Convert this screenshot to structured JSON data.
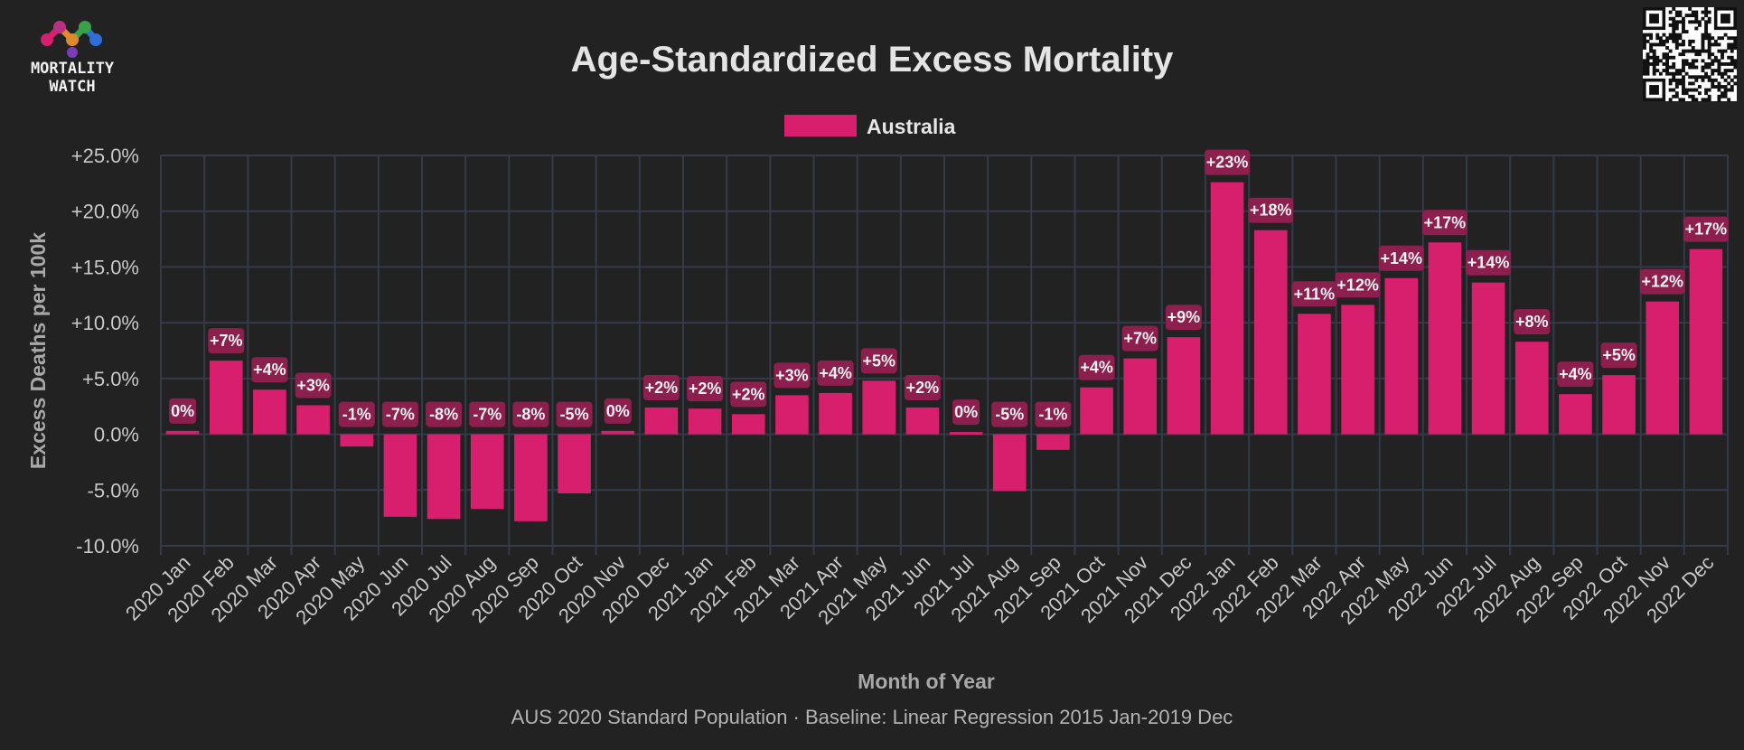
{
  "logo": {
    "line1": "MORTALITY",
    "line2": "WATCH"
  },
  "colors": {
    "background": "#222222",
    "bar": "#d81f6e",
    "label_bg": "#8c1f4e",
    "grid": "#343a4a"
  },
  "chart_data": {
    "type": "bar",
    "title": "Age-Standardized Excess Mortality",
    "subtitle": "AUS 2020 Standard Population · Baseline: Linear Regression 2015 Jan-2019 Dec",
    "xlabel": "Month of Year",
    "ylabel": "Excess Deaths per 100k",
    "ylim": [
      -10,
      25
    ],
    "yticks": [
      "+25.0%",
      "+20.0%",
      "+15.0%",
      "+10.0%",
      "+5.0%",
      "0.0%",
      "-5.0%",
      "-10.0%"
    ],
    "ytick_values": [
      25,
      20,
      15,
      10,
      5,
      0,
      -5,
      -10
    ],
    "grid": true,
    "legend_position": "top-center",
    "categories": [
      "2020 Jan",
      "2020 Feb",
      "2020 Mar",
      "2020 Apr",
      "2020 May",
      "2020 Jun",
      "2020 Jul",
      "2020 Aug",
      "2020 Sep",
      "2020 Oct",
      "2020 Nov",
      "2020 Dec",
      "2021 Jan",
      "2021 Feb",
      "2021 Mar",
      "2021 Apr",
      "2021 May",
      "2021 Jun",
      "2021 Jul",
      "2021 Aug",
      "2021 Sep",
      "2021 Oct",
      "2021 Nov",
      "2021 Dec",
      "2022 Jan",
      "2022 Feb",
      "2022 Mar",
      "2022 Apr",
      "2022 May",
      "2022 Jun",
      "2022 Jul",
      "2022 Aug",
      "2022 Sep",
      "2022 Oct",
      "2022 Nov",
      "2022 Dec"
    ],
    "series": [
      {
        "name": "Australia",
        "values": [
          0.3,
          6.6,
          4.0,
          2.6,
          -1.1,
          -7.4,
          -7.6,
          -6.7,
          -7.8,
          -5.3,
          0.3,
          2.4,
          2.3,
          1.8,
          3.5,
          3.7,
          4.8,
          2.4,
          0.2,
          -5.1,
          -1.4,
          4.2,
          6.8,
          8.7,
          22.6,
          18.3,
          10.8,
          11.6,
          14.0,
          17.2,
          13.6,
          8.3,
          3.6,
          5.3,
          11.9,
          16.6
        ],
        "labels": [
          "0%",
          "+7%",
          "+4%",
          "+3%",
          "-1%",
          "-7%",
          "-8%",
          "-7%",
          "-8%",
          "-5%",
          "0%",
          "+2%",
          "+2%",
          "+2%",
          "+3%",
          "+4%",
          "+5%",
          "+2%",
          "0%",
          "-5%",
          "-1%",
          "+4%",
          "+7%",
          "+9%",
          "+23%",
          "+18%",
          "+11%",
          "+12%",
          "+14%",
          "+17%",
          "+14%",
          "+8%",
          "+4%",
          "+5%",
          "+12%",
          "+17%"
        ]
      }
    ]
  }
}
